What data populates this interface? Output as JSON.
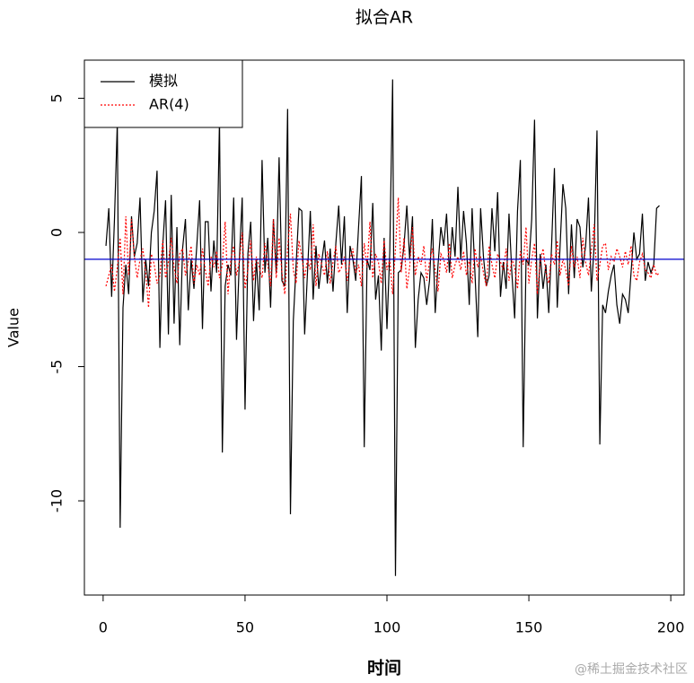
{
  "chart_data": {
    "type": "line",
    "title": "拟合AR",
    "x_label": "时间",
    "y_label": "Value",
    "watermark": "@稀土掘金技术社区",
    "x": [
      1,
      2,
      3,
      4,
      5,
      6,
      7,
      8,
      9,
      10,
      11,
      12,
      13,
      14,
      15,
      16,
      17,
      18,
      19,
      20,
      21,
      22,
      23,
      24,
      25,
      26,
      27,
      28,
      29,
      30,
      31,
      32,
      33,
      34,
      35,
      36,
      37,
      38,
      39,
      40,
      41,
      42,
      43,
      44,
      45,
      46,
      47,
      48,
      49,
      50,
      51,
      52,
      53,
      54,
      55,
      56,
      57,
      58,
      59,
      60,
      61,
      62,
      63,
      64,
      65,
      66,
      67,
      68,
      69,
      70,
      71,
      72,
      73,
      74,
      75,
      76,
      77,
      78,
      79,
      80,
      81,
      82,
      83,
      84,
      85,
      86,
      87,
      88,
      89,
      90,
      91,
      92,
      93,
      94,
      95,
      96,
      97,
      98,
      99,
      100,
      101,
      102,
      103,
      104,
      105,
      106,
      107,
      108,
      109,
      110,
      111,
      112,
      113,
      114,
      115,
      116,
      117,
      118,
      119,
      120,
      121,
      122,
      123,
      124,
      125,
      126,
      127,
      128,
      129,
      130,
      131,
      132,
      133,
      134,
      135,
      136,
      137,
      138,
      139,
      140,
      141,
      142,
      143,
      144,
      145,
      146,
      147,
      148,
      149,
      150,
      151,
      152,
      153,
      154,
      155,
      156,
      157,
      158,
      159,
      160,
      161,
      162,
      163,
      164,
      165,
      166,
      167,
      168,
      169,
      170,
      171,
      172,
      173,
      174,
      175,
      176,
      177,
      178,
      179,
      180,
      181,
      182,
      183,
      184,
      185,
      186,
      187,
      188,
      189,
      190,
      191,
      192,
      193,
      194,
      195,
      196
    ],
    "series": [
      {
        "name": "模拟",
        "color": "#000000",
        "dash": "solid",
        "values": [
          -0.5,
          0.9,
          -2.4,
          0.5,
          4.1,
          -11.0,
          -2.8,
          -1.2,
          -2.3,
          0.6,
          -0.9,
          -0.4,
          1.3,
          -2.6,
          -1.0,
          -2.0,
          0.0,
          0.8,
          2.3,
          -4.3,
          -0.5,
          1.2,
          -3.8,
          1.4,
          -3.4,
          0.2,
          -4.2,
          -0.6,
          0.5,
          -2.9,
          -1.0,
          -2.1,
          -0.5,
          1.2,
          -3.6,
          0.4,
          0.4,
          -2.2,
          -0.3,
          -1.5,
          4.2,
          -8.2,
          -2.0,
          -1.2,
          -1.6,
          1.3,
          -4.0,
          -1.0,
          1.3,
          -6.6,
          -0.8,
          0.4,
          -3.3,
          -1.0,
          -2.9,
          2.7,
          -1.5,
          -0.2,
          -2.8,
          0.5,
          -1.5,
          2.8,
          -1.8,
          -2.0,
          4.6,
          -10.5,
          -3.3,
          -1.2,
          0.9,
          0.8,
          -3.8,
          -1.5,
          0.8,
          -2.5,
          -0.5,
          -2.1,
          -1.1,
          -0.3,
          -1.9,
          -0.6,
          -2.2,
          -0.4,
          1.0,
          -1.2,
          0.6,
          -3.0,
          -0.5,
          -1.0,
          -1.8,
          0.2,
          2.1,
          -8.0,
          -1.0,
          -1.4,
          1.1,
          -2.5,
          -1.6,
          -4.4,
          -0.2,
          -3.6,
          -0.7,
          5.7,
          -12.8,
          -1.5,
          -1.4,
          -0.5,
          1.0,
          -1.0,
          0.6,
          -4.3,
          -2.5,
          -1.5,
          -1.7,
          -2.7,
          -1.8,
          0.5,
          -3.0,
          -1.2,
          0.2,
          -0.5,
          0.7,
          -1.5,
          0.2,
          -0.9,
          1.7,
          -1.0,
          0.8,
          -0.4,
          -2.7,
          0.9,
          -1.5,
          -3.9,
          0.9,
          -0.9,
          -2.0,
          -1.6,
          0.9,
          -0.7,
          1.5,
          -2.4,
          -1.1,
          -2.1,
          0.7,
          -1.5,
          -3.2,
          0.8,
          2.7,
          -8.0,
          -1.0,
          -1.2,
          0.5,
          4.2,
          -3.2,
          -0.8,
          -2.1,
          -1.2,
          -3.0,
          -0.5,
          2.4,
          -2.8,
          -0.5,
          1.8,
          0.9,
          -2.3,
          0.3,
          -1.7,
          0.5,
          0.2,
          -1.3,
          -0.5,
          1.3,
          -2.2,
          -0.5,
          3.8,
          -7.9,
          -2.7,
          -3.0,
          -2.2,
          -1.6,
          -1.2,
          -2.7,
          -3.4,
          -2.3,
          -2.5,
          -3.0,
          -1.5,
          0.0,
          -1.0,
          -0.8,
          0.7,
          -1.8,
          -1.1,
          -1.5,
          -1.2,
          0.9,
          1.0
        ]
      },
      {
        "name": "AR(4)",
        "color": "#ff0000",
        "dash": "dotted",
        "values": [
          -2.0,
          -1.6,
          -1.2,
          -2.2,
          -1.3,
          -0.2,
          -2.3,
          0.6,
          -1.6,
          0.5,
          -0.9,
          -1.7,
          -1.0,
          -0.6,
          -1.5,
          -2.8,
          -0.8,
          -1.2,
          -1.9,
          -1.6,
          -0.3,
          -1.7,
          -1.1,
          -0.2,
          -1.3,
          -1.9,
          -0.8,
          -0.6,
          -1.6,
          -1.1,
          -0.5,
          -1.9,
          -1.2,
          -1.6,
          -0.6,
          -1.4,
          -2.0,
          -0.9,
          -1.3,
          -0.7,
          -1.7,
          -1.2,
          0.4,
          -2.3,
          -1.0,
          -0.5,
          -1.6,
          -1.1,
          0.0,
          -2.1,
          -1.4,
          -0.3,
          -1.8,
          -0.9,
          -1.3,
          -1.7,
          -0.4,
          -1.2,
          -2.0,
          0.5,
          -1.7,
          -0.2,
          -1.5,
          -2.3,
          -0.6,
          0.7,
          -1.4,
          -1.9,
          -0.3,
          -0.9,
          -1.7,
          -1.0,
          -1.4,
          0.3,
          -2.0,
          -0.8,
          -1.2,
          -1.6,
          -0.7,
          -1.9,
          -1.1,
          -0.5,
          -1.5,
          -1.3,
          -0.9,
          -1.8,
          -1.0,
          -0.6,
          -1.5,
          -1.2,
          -2.0,
          -0.4,
          -1.3,
          0.4,
          -1.7,
          -0.8,
          -1.1,
          -1.9,
          -0.3,
          -1.4,
          -1.0,
          -2.3,
          -0.6,
          1.3,
          -1.5,
          -0.2,
          -2.1,
          -1.3,
          0.2,
          -1.6,
          -0.9,
          -1.2,
          -0.5,
          -1.8,
          -1.1,
          -0.6,
          -1.4,
          -2.2,
          -0.8,
          -1.0,
          -1.5,
          -0.4,
          -1.7,
          -1.2,
          -0.9,
          -1.4,
          -0.7,
          -1.6,
          -1.0,
          -1.9,
          -0.6,
          -1.3,
          -0.9,
          -1.5,
          -2.0,
          -0.5,
          -1.2,
          -1.7,
          -0.8,
          -1.1,
          -1.4,
          -0.6,
          -1.8,
          -1.0,
          -1.3,
          -2.1,
          -0.7,
          -1.2,
          0.2,
          -1.9,
          -1.0,
          -0.4,
          -2.3,
          -1.1,
          -0.6,
          -1.5,
          -1.9,
          -0.8,
          -1.2,
          -0.3,
          -1.6,
          -1.0,
          -1.4,
          -2.0,
          -0.5,
          -1.3,
          -0.9,
          -1.7,
          -0.2,
          -1.1,
          -1.6,
          -0.7,
          0.3,
          -1.8,
          -1.2,
          -0.5,
          -0.4,
          -1.4,
          -0.9,
          -1.1,
          -0.6,
          -0.9,
          -1.3,
          -0.7,
          -1.2,
          -0.5,
          -1.6,
          -1.8,
          -1.1,
          -0.8,
          -1.4,
          -1.5,
          -1.7,
          -1.2,
          -1.6,
          -1.5
        ]
      }
    ],
    "hline": -1,
    "hline_color": "#0000cd",
    "xlim": [
      -6.6,
      204.7
    ],
    "ylim": [
      -13.51,
      6.42
    ],
    "xticks": [
      0,
      50,
      100,
      150,
      200
    ],
    "yticks": [
      -10,
      -5,
      0,
      5
    ],
    "legend": "top-left"
  }
}
